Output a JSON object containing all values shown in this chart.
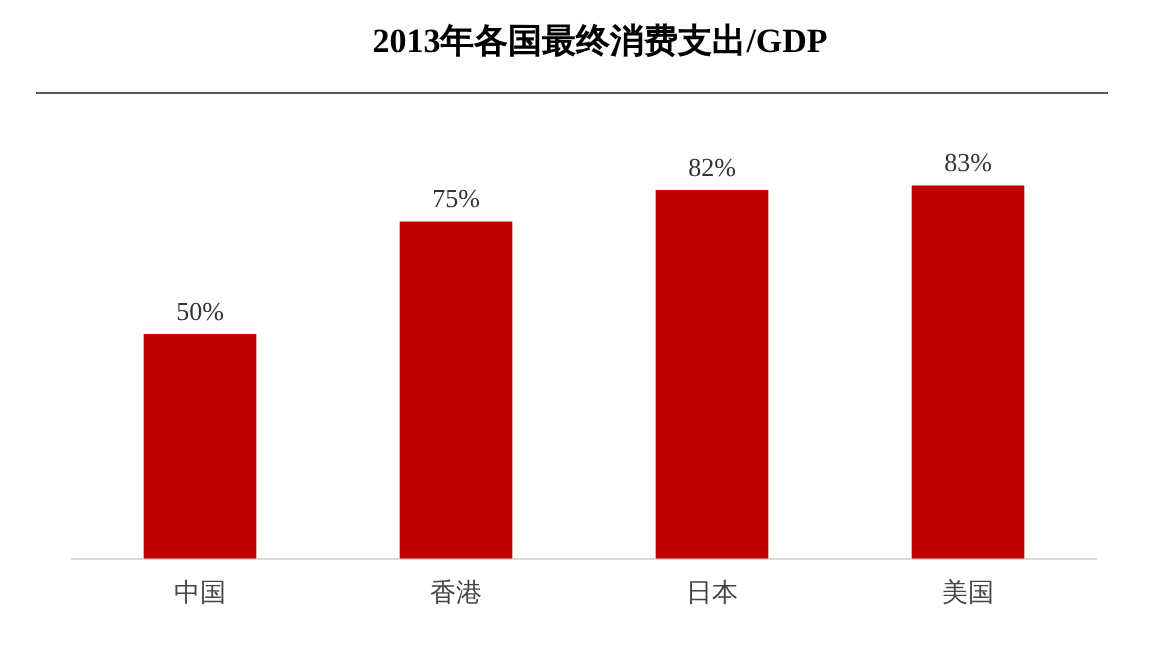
{
  "chart_data": {
    "type": "bar",
    "title": "2013年各国最终消费支出/GDP",
    "categories": [
      "中国",
      "香港",
      "日本",
      "美国"
    ],
    "values": [
      50,
      75,
      82,
      83
    ],
    "value_labels": [
      "50%",
      "75%",
      "82%",
      "83%"
    ],
    "color": "#c00000",
    "relative": false,
    "grid": false,
    "legend": false
  }
}
